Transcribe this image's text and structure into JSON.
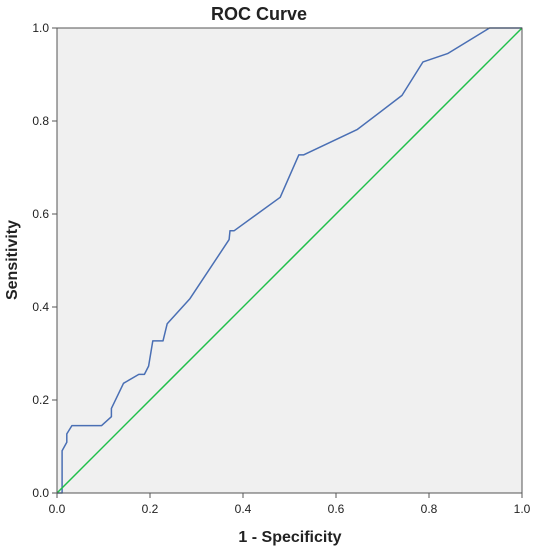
{
  "chart_data": {
    "type": "line",
    "title": "ROC Curve",
    "xlabel": "1 - Specificity",
    "ylabel": "Sensitivity",
    "xlim": [
      0.0,
      1.0
    ],
    "ylim": [
      0.0,
      1.0
    ],
    "x_ticks": [
      "0.0",
      "0.2",
      "0.4",
      "0.6",
      "0.8",
      "1.0"
    ],
    "y_ticks": [
      "0.0",
      "0.2",
      "0.4",
      "0.6",
      "0.8",
      "1.0"
    ],
    "grid": false,
    "background_color": "#f0f0f0",
    "series": [
      {
        "color": "#4a6fb4",
        "points": [
          [
            0.0,
            0.0
          ],
          [
            0.011,
            0.0
          ],
          [
            0.011,
            0.091
          ],
          [
            0.021,
            0.109
          ],
          [
            0.021,
            0.127
          ],
          [
            0.032,
            0.145
          ],
          [
            0.096,
            0.145
          ],
          [
            0.117,
            0.164
          ],
          [
            0.117,
            0.182
          ],
          [
            0.143,
            0.236
          ],
          [
            0.176,
            0.255
          ],
          [
            0.188,
            0.255
          ],
          [
            0.197,
            0.273
          ],
          [
            0.206,
            0.327
          ],
          [
            0.228,
            0.327
          ],
          [
            0.237,
            0.364
          ],
          [
            0.286,
            0.418
          ],
          [
            0.37,
            0.545
          ],
          [
            0.372,
            0.564
          ],
          [
            0.381,
            0.564
          ],
          [
            0.48,
            0.636
          ],
          [
            0.52,
            0.727
          ],
          [
            0.53,
            0.727
          ],
          [
            0.646,
            0.782
          ],
          [
            0.742,
            0.855
          ],
          [
            0.787,
            0.927
          ],
          [
            0.84,
            0.945
          ],
          [
            0.93,
            1.0
          ],
          [
            1.0,
            1.0
          ]
        ]
      },
      {
        "color": "#1fbf4a",
        "points": [
          [
            0.0,
            0.0
          ],
          [
            1.0,
            1.0
          ]
        ]
      }
    ]
  }
}
